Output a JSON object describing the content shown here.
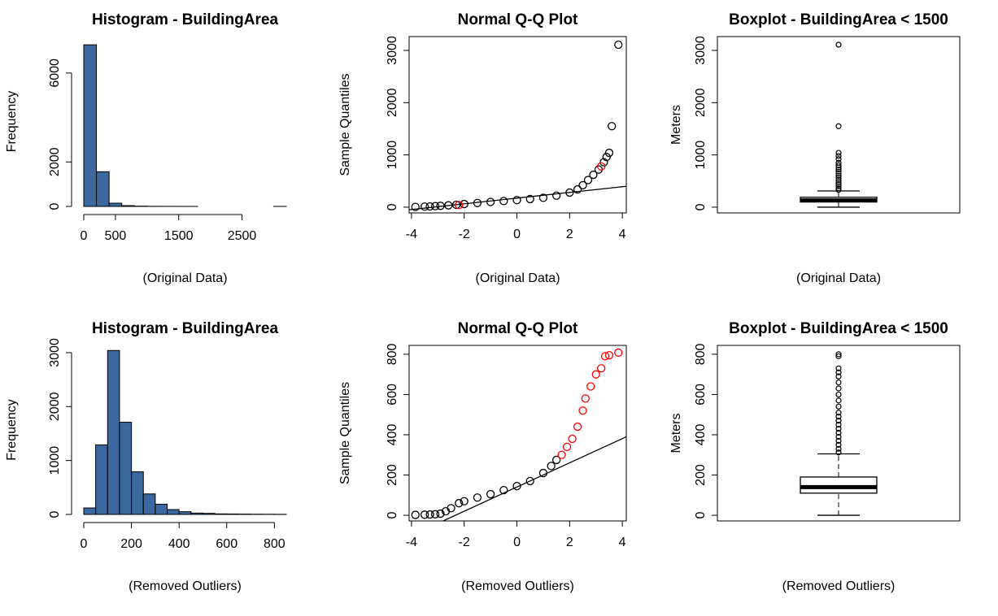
{
  "chart_data": [
    {
      "type": "histogram",
      "title": "Histogram - BuildingArea",
      "xlabel": "(Original Data)",
      "ylabel": "Frequency",
      "color": "#3a689f",
      "bins": [
        0,
        200,
        400,
        600,
        800,
        1000,
        1200,
        1400,
        1600,
        1800,
        2000,
        2200,
        2400,
        2600,
        2800,
        3000,
        3200
      ],
      "values": [
        7270,
        1560,
        145,
        35,
        12,
        5,
        3,
        2,
        1,
        0,
        0,
        0,
        0,
        0,
        0,
        1
      ],
      "xlim": [
        0,
        3200
      ],
      "ylim": [
        0,
        7640
      ],
      "xticks": [
        0,
        500,
        1500,
        2500
      ],
      "yticks": [
        0,
        2000,
        6000
      ]
    },
    {
      "type": "qq",
      "title": "Normal Q-Q Plot",
      "xlabel": "(Original Data)",
      "ylabel": "Sample Quantiles",
      "series": [
        {
          "color": "#000000",
          "x": [
            -3.85,
            -3.5,
            -3.3,
            -3.1,
            -2.9,
            -2.6,
            -2.3,
            -2,
            -1.5,
            -1,
            -0.5,
            0,
            0.5,
            1,
            1.5,
            2,
            2.3,
            2.5,
            2.7,
            2.9,
            3.1,
            3.3,
            3.4,
            3.5,
            3.6,
            3.85
          ],
          "y": [
            5,
            10,
            15,
            20,
            25,
            35,
            45,
            60,
            80,
            100,
            118,
            135,
            155,
            180,
            220,
            280,
            340,
            420,
            520,
            620,
            720,
            860,
            960,
            1040,
            1550,
            3110
          ]
        },
        {
          "color": "#ff0000",
          "x": [
            -2.2,
            3.2
          ],
          "y": [
            40,
            780
          ]
        }
      ],
      "reference_line": {
        "x": [
          -4.09,
          4.15
        ],
        "y": [
          -50,
          400
        ]
      },
      "xlim": [
        -4.09,
        4.15
      ],
      "ylim": [
        -110,
        3265
      ],
      "xticks": [
        -4,
        -2,
        0,
        2,
        4
      ],
      "yticks": [
        0,
        1000,
        2000,
        3000
      ]
    },
    {
      "type": "box",
      "title": "Boxplot - BuildingArea < 1500",
      "xlabel": "(Original Data)",
      "ylabel": "Meters",
      "box": {
        "min": 0,
        "q1": 100,
        "median": 130,
        "q3": 190,
        "max": 310,
        "outliers": [
          330,
          360,
          400,
          440,
          480,
          520,
          560,
          600,
          640,
          680,
          720,
          760,
          800,
          850,
          920,
          980,
          1040,
          1550,
          3110
        ]
      },
      "ylim": [
        -110,
        3265
      ],
      "yticks": [
        0,
        1000,
        2000,
        3000
      ]
    },
    {
      "type": "histogram",
      "title": "Histogram - BuildingArea",
      "xlabel": "(Removed Outliers)",
      "ylabel": "Frequency",
      "color": "#3a689f",
      "bins": [
        0,
        50,
        100,
        150,
        200,
        250,
        300,
        350,
        400,
        450,
        500,
        550,
        600,
        650,
        700,
        750,
        800,
        850
      ],
      "values": [
        120,
        1290,
        3040,
        1710,
        790,
        380,
        190,
        90,
        50,
        25,
        20,
        10,
        8,
        6,
        4,
        3,
        2
      ],
      "xlim": [
        0,
        850
      ],
      "ylim": [
        0,
        3135
      ],
      "xticks": [
        0,
        200,
        400,
        600,
        800
      ],
      "yticks": [
        0,
        1000,
        2000,
        3000
      ]
    },
    {
      "type": "qq",
      "title": "Normal Q-Q Plot",
      "xlabel": "(Removed Outliers)",
      "ylabel": "Sample Quantiles",
      "series": [
        {
          "color": "#000000",
          "x": [
            -3.85,
            -3.5,
            -3.3,
            -3.1,
            -2.9,
            -2.7,
            -2.5,
            -2.2,
            -2,
            -1.5,
            -1,
            -0.5,
            0,
            0.5,
            1,
            1.3,
            1.5
          ],
          "y": [
            2,
            3,
            4,
            5,
            8,
            20,
            35,
            60,
            70,
            88,
            105,
            125,
            145,
            170,
            210,
            245,
            275
          ]
        },
        {
          "color": "#ff0000",
          "x": [
            1.7,
            1.9,
            2.1,
            2.3,
            2.5,
            2.6,
            2.8,
            3,
            3.2,
            3.35,
            3.5,
            3.85
          ],
          "y": [
            300,
            340,
            380,
            440,
            520,
            580,
            640,
            700,
            730,
            790,
            795,
            808
          ]
        }
      ],
      "reference_line": {
        "x": [
          -2.8,
          4.15
        ],
        "y": [
          -28,
          390
        ]
      },
      "xlim": [
        -4.09,
        4.15
      ],
      "ylim": [
        -28,
        844
      ],
      "xticks": [
        -4,
        -2,
        0,
        2,
        4
      ],
      "yticks": [
        0,
        200,
        400,
        600,
        800
      ]
    },
    {
      "type": "box",
      "title": "Boxplot - BuildingArea < 1500",
      "xlabel": "(Removed Outliers)",
      "ylabel": "Meters",
      "box": {
        "min": 0,
        "q1": 110,
        "median": 140,
        "q3": 190,
        "max": 305,
        "outliers": [
          312,
          330,
          350,
          370,
          390,
          410,
          430,
          450,
          470,
          490,
          510,
          540,
          570,
          600,
          630,
          660,
          690,
          710,
          730,
          790,
          800
        ]
      },
      "ylim": [
        -28,
        844
      ],
      "yticks": [
        0,
        200,
        400,
        600,
        800
      ]
    }
  ]
}
